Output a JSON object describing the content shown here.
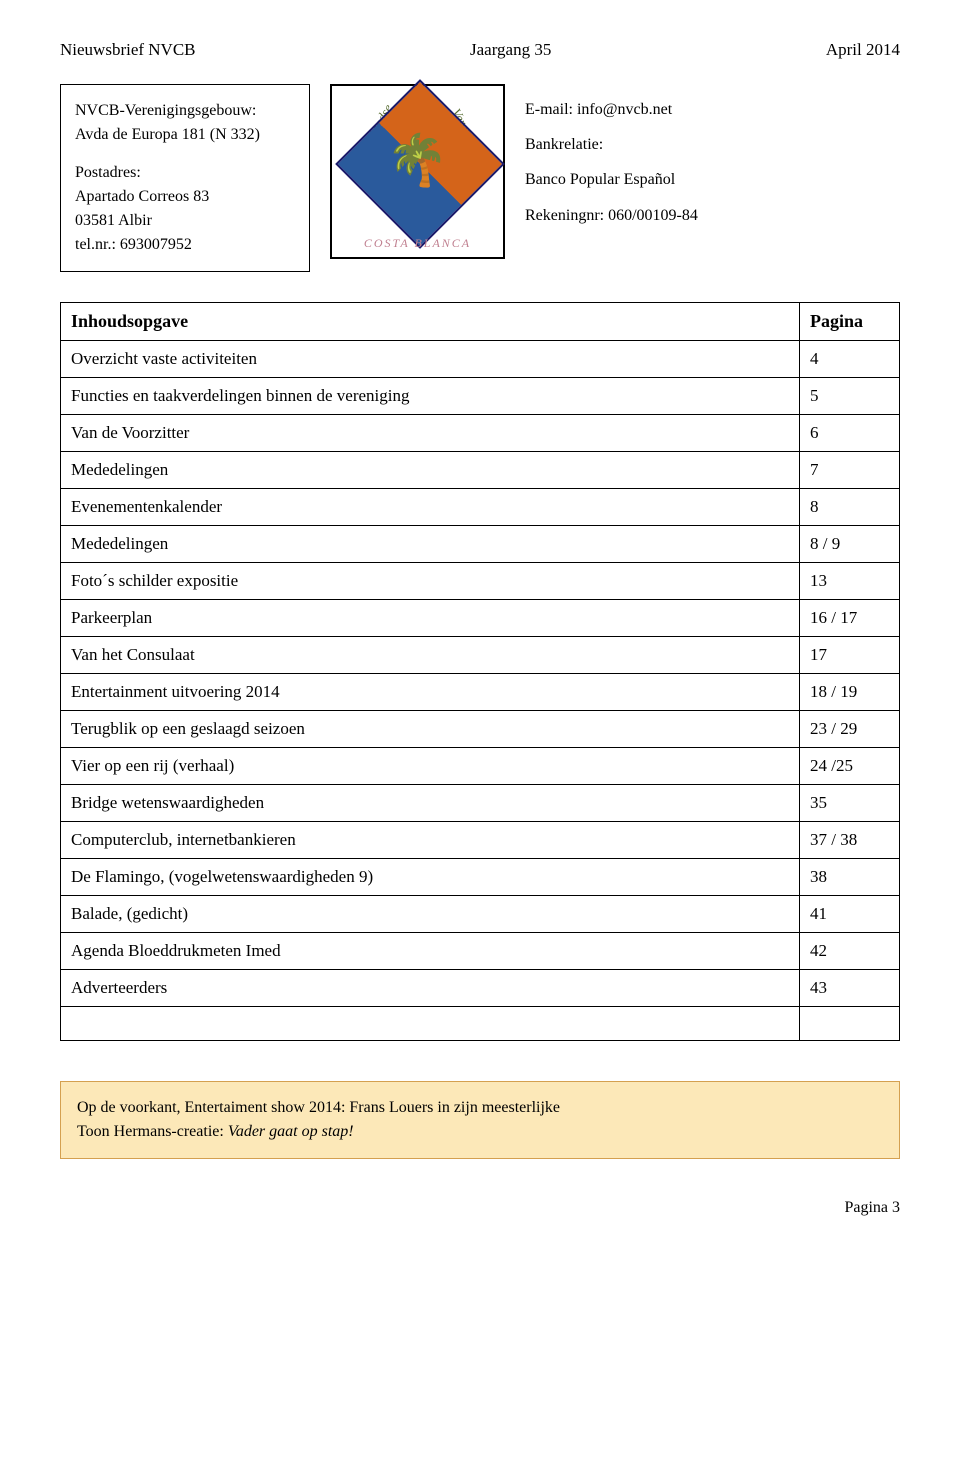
{
  "header": {
    "left": "Nieuwsbrief NVCB",
    "center": "Jaargang 35",
    "right": "April  2014"
  },
  "address_box": {
    "line1": "NVCB-Verenigingsgebouw:",
    "line2": "Avda de Europa 181 (N 332)",
    "line3": "Postadres:",
    "line4": "Apartado Correos  83",
    "line5": "03581 Albir",
    "line6": "tel.nr.: 693007952"
  },
  "logo": {
    "text_top_left": "Nederlandse",
    "text_top_right": "Vereniging",
    "text_bottom": "COSTA  BLANCA"
  },
  "bank_box": {
    "email": "E-mail: info@nvcb.net",
    "relation": "Bankrelatie:",
    "bank": "Banco Popular Español",
    "account": "Rekeningnr: 060/00109-84"
  },
  "toc": {
    "header_left": "Inhoudsopgave",
    "header_right": "Pagina",
    "rows": [
      {
        "label": "Overzicht vaste activiteiten",
        "page": "4"
      },
      {
        "label": "Functies en taakverdelingen binnen de vereniging",
        "page": "5"
      },
      {
        "label": "Van de Voorzitter",
        "page": "6"
      },
      {
        "label": "Mededelingen",
        "page": "7"
      },
      {
        "label": "Evenementenkalender",
        "page": "8"
      },
      {
        "label": "Mededelingen",
        "page": "8 / 9"
      },
      {
        "label": "Foto´s schilder expositie",
        "page": "13"
      },
      {
        "label": "Parkeerplan",
        "page": "16 / 17"
      },
      {
        "label": "Van het Consulaat",
        "page": "17"
      },
      {
        "label": "Entertainment uitvoering 2014",
        "page": "18 / 19"
      },
      {
        "label": "Terugblik op een geslaagd seizoen",
        "page": "23 / 29"
      },
      {
        "label": "Vier op een rij (verhaal)",
        "page": "24 /25"
      },
      {
        "label": "Bridge wetenswaardigheden",
        "page": "35"
      },
      {
        "label": "Computerclub, internetbankieren",
        "page": "37 / 38"
      },
      {
        "label": "De Flamingo, (vogelwetenswaardigheden 9)",
        "page": "38"
      },
      {
        "label": "Balade, (gedicht)",
        "page": "41"
      },
      {
        "label": "Agenda Bloeddrukmeten Imed",
        "page": "42"
      },
      {
        "label": "Adverteerders",
        "page": "43"
      }
    ]
  },
  "footer_box": {
    "text1": "Op de voorkant, Entertaiment show 2014:  Frans Louers in zijn meesterlijke",
    "text2": "Toon Hermans-creatie:  ",
    "italic": "Vader gaat op stap!"
  },
  "page_number": "Pagina  3",
  "colors": {
    "footer_bg": "#fce8b8",
    "footer_border": "#d4a050",
    "logo_orange": "#d4641a",
    "logo_blue": "#2a5a9c",
    "logo_border": "#1a1a6a",
    "logo_top_text": "#556b2f",
    "logo_bottom_text": "#c08090"
  }
}
